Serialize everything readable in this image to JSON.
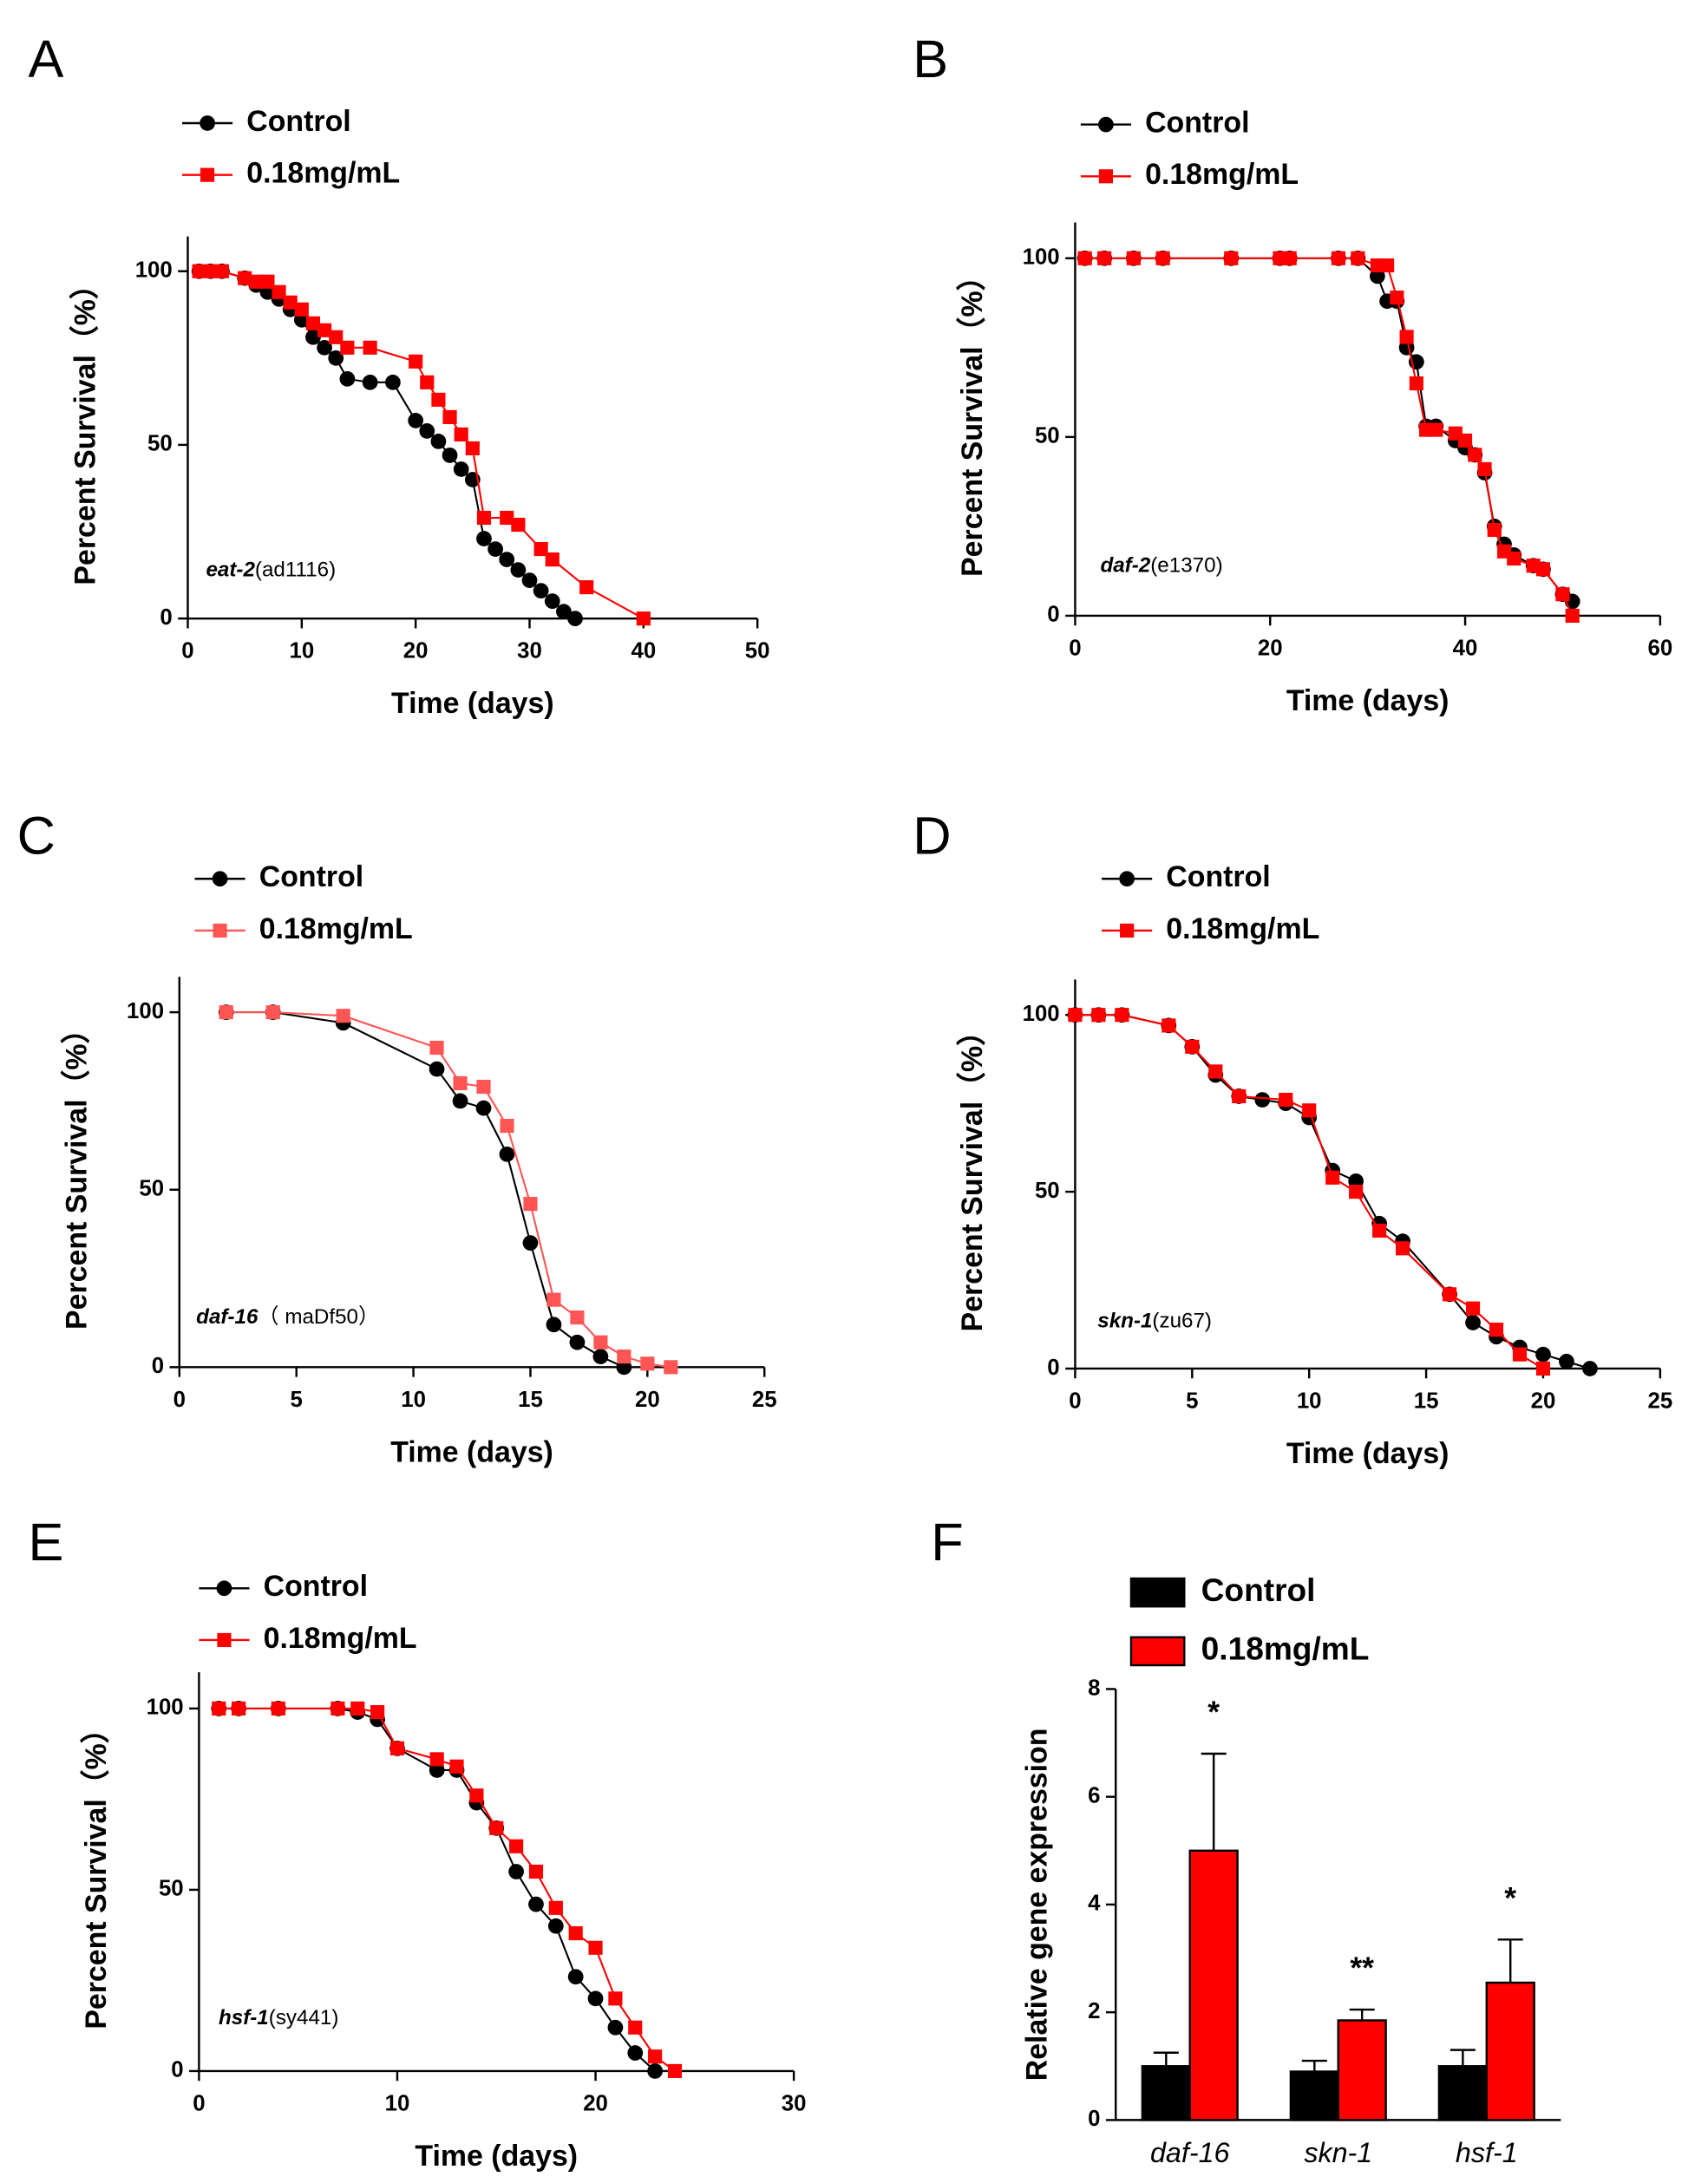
{
  "chart_data": [
    {
      "type": "line",
      "panel_label": "A",
      "xlabel": "Time (days)",
      "ylabel": "Percent Survival（%）",
      "xlim": [
        0,
        50
      ],
      "ylim": [
        0,
        110
      ],
      "xticks": [
        0,
        10,
        20,
        30,
        40,
        50
      ],
      "yticks": [
        0,
        50,
        100
      ],
      "annotation": {
        "gene": "eat-2",
        "allele": "(ad1116)"
      },
      "series": [
        {
          "name": "Control",
          "color": "#000000",
          "marker": "circle",
          "x": [
            1,
            2,
            3,
            5,
            6,
            7,
            8,
            9,
            10,
            11,
            12,
            13,
            14,
            16,
            18,
            20,
            21,
            22,
            23,
            24,
            25,
            26,
            27,
            28,
            29,
            30,
            31,
            32,
            33,
            34
          ],
          "values": [
            100,
            100,
            100,
            98,
            96,
            94,
            92,
            89,
            86,
            81,
            78,
            75,
            69,
            68,
            68,
            57,
            54,
            51,
            47,
            43,
            40,
            23,
            20,
            17,
            14,
            11,
            8,
            5,
            2,
            0
          ]
        },
        {
          "name": "0.18mg/mL",
          "color": "#ff0000",
          "marker": "square",
          "x": [
            1,
            2,
            3,
            5,
            6,
            7,
            8,
            9,
            10,
            11,
            12,
            13,
            14,
            16,
            20,
            21,
            22,
            23,
            24,
            25,
            26,
            28,
            29,
            31,
            32,
            35,
            40
          ],
          "values": [
            100,
            100,
            100,
            98,
            97,
            97,
            94,
            91,
            89,
            85,
            83,
            81,
            78,
            78,
            74,
            68,
            63,
            58,
            53,
            49,
            29,
            29,
            27,
            20,
            17,
            9,
            0
          ]
        }
      ]
    },
    {
      "type": "line",
      "panel_label": "B",
      "xlabel": "Time (days)",
      "ylabel": "Percent Survival（%）",
      "xlim": [
        0,
        60
      ],
      "ylim": [
        0,
        110
      ],
      "xticks": [
        0,
        20,
        40,
        60
      ],
      "yticks": [
        0,
        50,
        100
      ],
      "annotation": {
        "gene": "daf-2",
        "allele": "(e1370)"
      },
      "series": [
        {
          "name": "Control",
          "color": "#000000",
          "marker": "circle",
          "x": [
            1,
            3,
            6,
            9,
            16,
            21,
            22,
            27,
            29,
            31,
            32,
            33,
            34,
            35,
            36,
            37,
            39,
            40,
            41,
            42,
            43,
            44,
            45,
            47,
            48,
            50,
            51
          ],
          "values": [
            100,
            100,
            100,
            100,
            100,
            100,
            100,
            100,
            100,
            95,
            88,
            88,
            75,
            71,
            53,
            53,
            49,
            47,
            45,
            40,
            25,
            20,
            17,
            14,
            13,
            6,
            4
          ]
        },
        {
          "name": "0.18mg/mL",
          "color": "#ff0000",
          "marker": "square",
          "x": [
            1,
            3,
            6,
            9,
            16,
            21,
            22,
            27,
            29,
            31,
            32,
            33,
            34,
            35,
            36,
            37,
            39,
            40,
            41,
            42,
            43,
            44,
            45,
            47,
            48,
            50,
            51
          ],
          "values": [
            100,
            100,
            100,
            100,
            100,
            100,
            100,
            100,
            100,
            98,
            98,
            89,
            78,
            65,
            52,
            52,
            51,
            49,
            45,
            41,
            24,
            18,
            16,
            14,
            13,
            6,
            0
          ]
        }
      ]
    },
    {
      "type": "line",
      "panel_label": "C",
      "xlabel": "Time (days)",
      "ylabel": "Percent Survival（%）",
      "xlim": [
        0,
        25
      ],
      "ylim": [
        0,
        110
      ],
      "xticks": [
        0,
        5,
        10,
        15,
        20,
        25
      ],
      "yticks": [
        0,
        50,
        100
      ],
      "annotation": {
        "gene": "daf-16",
        "allele": "（ maDf50）"
      },
      "series": [
        {
          "name": "Control",
          "color": "#000000",
          "marker": "circle",
          "x": [
            2,
            4,
            7,
            11,
            12,
            13,
            14,
            15,
            16,
            17,
            18,
            19
          ],
          "values": [
            100,
            100,
            97,
            84,
            75,
            73,
            60,
            35,
            12,
            7,
            3,
            0
          ]
        },
        {
          "name": "0.18mg/mL",
          "color": "#ff5555",
          "marker": "square",
          "x": [
            2,
            4,
            7,
            11,
            12,
            13,
            14,
            15,
            16,
            17,
            18,
            19,
            20,
            21
          ],
          "values": [
            100,
            100,
            99,
            90,
            80,
            79,
            68,
            46,
            19,
            14,
            7,
            3,
            1,
            0
          ]
        }
      ]
    },
    {
      "type": "line",
      "panel_label": "D",
      "xlabel": "Time (days)",
      "ylabel": "Percent Survival（%）",
      "xlim": [
        0,
        25
      ],
      "ylim": [
        0,
        110
      ],
      "xticks": [
        0,
        5,
        10,
        15,
        20,
        25
      ],
      "yticks": [
        0,
        50,
        100
      ],
      "annotation": {
        "gene": "skn-1",
        "allele": "(zu67)"
      },
      "series": [
        {
          "name": "Control",
          "color": "#000000",
          "marker": "circle",
          "x": [
            0,
            1,
            2,
            4,
            5,
            6,
            7,
            8,
            9,
            10,
            11,
            12,
            13,
            14,
            16,
            17,
            18,
            19,
            20,
            21,
            22
          ],
          "values": [
            100,
            100,
            100,
            97,
            91,
            83,
            77,
            76,
            75,
            71,
            56,
            53,
            41,
            36,
            21,
            13,
            9,
            6,
            4,
            2,
            0
          ]
        },
        {
          "name": "0.18mg/mL",
          "color": "#ff0000",
          "marker": "square",
          "x": [
            0,
            1,
            2,
            4,
            5,
            6,
            7,
            9,
            10,
            11,
            12,
            13,
            14,
            16,
            17,
            18,
            19,
            20
          ],
          "values": [
            100,
            100,
            100,
            97,
            91,
            84,
            77,
            76,
            73,
            54,
            50,
            39,
            34,
            21,
            17,
            11,
            4,
            0
          ]
        }
      ]
    },
    {
      "type": "line",
      "panel_label": "E",
      "xlabel": "Time (days)",
      "ylabel": "Percent Survival（%）",
      "xlim": [
        0,
        30
      ],
      "ylim": [
        0,
        110
      ],
      "xticks": [
        0,
        10,
        20,
        30
      ],
      "yticks": [
        0,
        50,
        100
      ],
      "annotation": {
        "gene": "hsf-1",
        "allele": "(sy441)"
      },
      "series": [
        {
          "name": "Control",
          "color": "#000000",
          "marker": "circle",
          "x": [
            1,
            2,
            4,
            7,
            8,
            9,
            10,
            12,
            13,
            14,
            15,
            16,
            17,
            18,
            19,
            20,
            21,
            22,
            23
          ],
          "values": [
            100,
            100,
            100,
            100,
            99,
            97,
            89,
            83,
            83,
            74,
            67,
            55,
            46,
            40,
            26,
            20,
            12,
            5,
            0
          ]
        },
        {
          "name": "0.18mg/mL",
          "color": "#ff0000",
          "marker": "square",
          "x": [
            1,
            2,
            4,
            7,
            8,
            9,
            10,
            12,
            13,
            14,
            15,
            16,
            17,
            18,
            19,
            20,
            21,
            22,
            23,
            24
          ],
          "values": [
            100,
            100,
            100,
            100,
            100,
            99,
            89,
            86,
            84,
            76,
            67,
            62,
            55,
            45,
            38,
            34,
            20,
            12,
            4,
            0
          ]
        }
      ]
    },
    {
      "type": "bar",
      "panel_label": "F",
      "ylabel": "Relative gene expression",
      "categories": [
        "daf-16",
        "skn-1",
        "hsf-1"
      ],
      "ylim": [
        0,
        8
      ],
      "yticks": [
        0,
        2,
        4,
        6,
        8
      ],
      "significance": [
        "*",
        "**",
        "*"
      ],
      "series": [
        {
          "name": "Control",
          "color": "#000000",
          "values": [
            1.0,
            0.9,
            1.0
          ],
          "errors": [
            0.25,
            0.2,
            0.3
          ]
        },
        {
          "name": "0.18mg/mL",
          "color": "#ff0000",
          "values": [
            5.0,
            1.85,
            2.55
          ],
          "errors": [
            1.8,
            0.2,
            0.8
          ]
        }
      ]
    }
  ]
}
